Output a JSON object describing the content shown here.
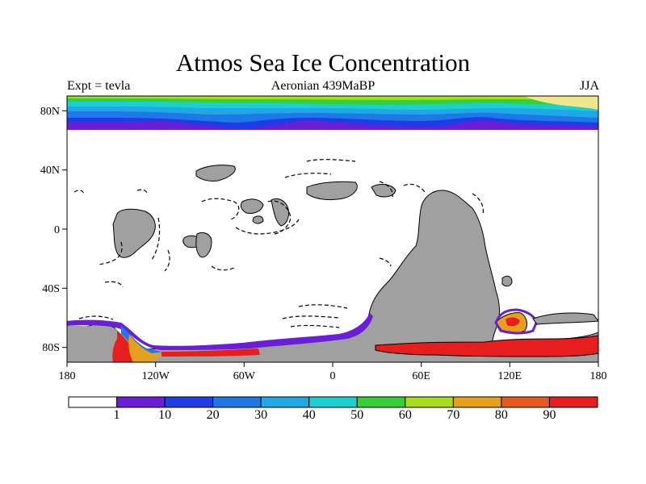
{
  "title": "Atmos Sea Ice Concentration",
  "subtitle_left": "Expt = tevla",
  "subtitle_center": "Aeronian 439MaBP",
  "subtitle_right": "JJA",
  "y_axis_labels": [
    "80N",
    "40N",
    "0",
    "40S",
    "80S"
  ],
  "x_axis_labels": [
    "180",
    "120W",
    "60W",
    "0",
    "60E",
    "120E",
    "180"
  ],
  "colorbar": {
    "colors": [
      "#ffffff",
      "#6a1ed6",
      "#1e3de6",
      "#1e78e6",
      "#1ea8e6",
      "#1ecfcf",
      "#35d035",
      "#a8dc1e",
      "#e6a01e",
      "#e65a1e",
      "#e61e1e"
    ],
    "labels": [
      "1",
      "10",
      "20",
      "30",
      "40",
      "50",
      "60",
      "70",
      "80",
      "90"
    ]
  },
  "land_color": "#a0a0a0"
}
